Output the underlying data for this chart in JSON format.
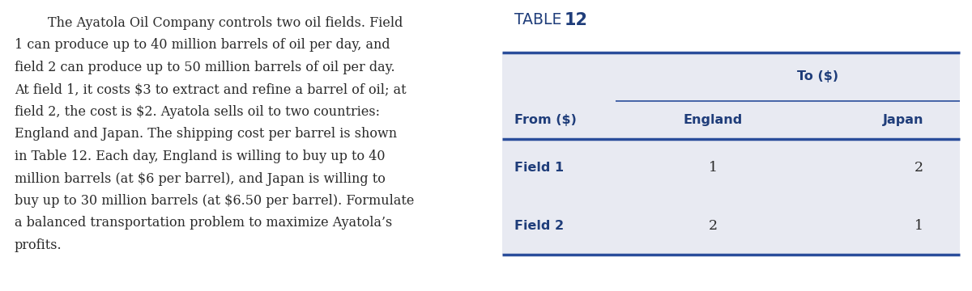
{
  "paragraph_lines": [
    "        The Ayatola Oil Company controls two oil fields. Field",
    "1 can produce up to 40 million barrels of oil per day, and",
    "field 2 can produce up to 50 million barrels of oil per day.",
    "At field 1, it costs $3 to extract and refine a barrel of oil; at",
    "field 2, the cost is $2. Ayatola sells oil to two countries:",
    "England and Japan. The shipping cost per barrel is shown",
    "in Table 12. Each day, England is willing to buy up to 40",
    "million barrels (at $6 per barrel), and Japan is willing to",
    "buy up to 30 million barrels (at $6.50 per barrel). Formulate",
    "a balanced transportation problem to maximize Ayatola’s",
    "profits."
  ],
  "table_title_part1": "TABLE  ",
  "table_title_part2": "12",
  "col_header_span": "To ($)",
  "row_header": "From ($)",
  "col1": "England",
  "col2": "Japan",
  "row1_label": "Field 1",
  "row2_label": "Field 2",
  "row1_vals": [
    "1",
    "2"
  ],
  "row2_vals": [
    "2",
    "1"
  ],
  "blue_color": "#1f3d7a",
  "body_text_color": "#2a2a2a",
  "table_bg": "#e8eaf2",
  "line_color": "#2a4d9b",
  "text_fontsize": 11.5,
  "table_header_fontsize": 11.5,
  "table_data_fontsize": 12.5,
  "title_fontsize_label": 13.5,
  "title_fontsize_num": 15.0
}
